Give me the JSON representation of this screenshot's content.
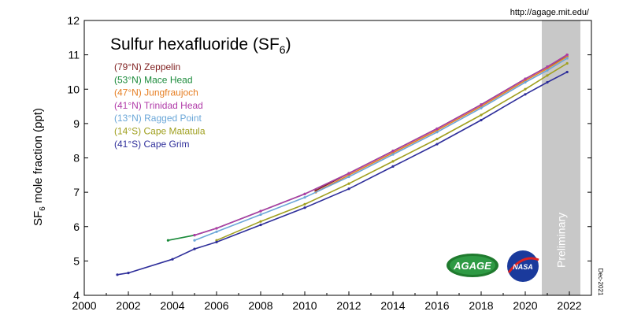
{
  "source_url": "http://agage.mit.edu/",
  "date_stamp": "Dec-2021",
  "preliminary_label": "Preliminary",
  "logos": {
    "agage": "AGAGE",
    "nasa": "NASA"
  },
  "chart_data": {
    "type": "line",
    "title_main": "Sulfur hexafluoride (SF",
    "title_sub": "6",
    "title_end": ")",
    "ylabel_main": "SF",
    "ylabel_sub": "6",
    "ylabel_end": " mole fraction (ppt)",
    "xlabel": "",
    "xlim": [
      2000,
      2023
    ],
    "ylim": [
      4,
      12
    ],
    "xticks": [
      2000,
      2002,
      2004,
      2006,
      2008,
      2010,
      2012,
      2014,
      2016,
      2018,
      2020,
      2022
    ],
    "yticks": [
      4,
      5,
      6,
      7,
      8,
      9,
      10,
      11,
      12
    ],
    "preliminary_range": [
      2020.75,
      2022.5
    ],
    "grid": false,
    "legend_position": "top-left",
    "series": [
      {
        "label": "(79°N)",
        "name": "Zeppelin",
        "color": "#7f1f1f",
        "x": [
          2010.5,
          2012,
          2014,
          2016,
          2018,
          2020,
          2021,
          2021.9
        ],
        "y": [
          7.05,
          7.55,
          8.2,
          8.85,
          9.55,
          10.3,
          10.65,
          11.0
        ]
      },
      {
        "label": "(53°N)",
        "name": "Mace Head",
        "color": "#1a8a3a",
        "x": [
          2003.8,
          2005,
          2006,
          2008,
          2010,
          2012,
          2014,
          2016,
          2018,
          2020,
          2021,
          2021.9
        ],
        "y": [
          5.6,
          5.75,
          5.95,
          6.45,
          6.95,
          7.55,
          8.2,
          8.85,
          9.55,
          10.3,
          10.65,
          10.95
        ]
      },
      {
        "label": "(47°N)",
        "name": "Jungfraujoch",
        "color": "#e67e22",
        "x": [
          2010.5,
          2012,
          2014,
          2016,
          2018,
          2020,
          2021,
          2021.9
        ],
        "y": [
          7.0,
          7.5,
          8.15,
          8.8,
          9.5,
          10.25,
          10.6,
          10.95
        ]
      },
      {
        "label": "(41°N)",
        "name": "Trinidad Head",
        "color": "#b03aa8",
        "x": [
          2005,
          2006,
          2008,
          2010,
          2012,
          2014,
          2016,
          2018,
          2020,
          2021,
          2021.9
        ],
        "y": [
          5.75,
          5.95,
          6.45,
          6.95,
          7.55,
          8.2,
          8.85,
          9.55,
          10.3,
          10.65,
          11.0
        ]
      },
      {
        "label": "(13°N)",
        "name": "Ragged Point",
        "color": "#6ba7d8",
        "x": [
          2005,
          2006,
          2008,
          2010,
          2012,
          2014,
          2016,
          2018,
          2020,
          2021,
          2021.9
        ],
        "y": [
          5.6,
          5.85,
          6.35,
          6.85,
          7.45,
          8.1,
          8.75,
          9.45,
          10.2,
          10.55,
          10.9
        ]
      },
      {
        "label": "(14°S)",
        "name": "Cape Matatula",
        "color": "#a0a020",
        "x": [
          2006,
          2008,
          2010,
          2012,
          2014,
          2016,
          2018,
          2020,
          2021,
          2021.9
        ],
        "y": [
          5.6,
          6.15,
          6.65,
          7.25,
          7.9,
          8.55,
          9.25,
          10.0,
          10.4,
          10.75
        ]
      },
      {
        "label": "(41°S)",
        "name": "Cape Grim",
        "color": "#2e2e9a",
        "x": [
          2001.5,
          2002,
          2004,
          2005,
          2006,
          2008,
          2010,
          2012,
          2014,
          2016,
          2018,
          2020,
          2021,
          2021.9
        ],
        "y": [
          4.6,
          4.65,
          5.05,
          5.35,
          5.55,
          6.05,
          6.55,
          7.1,
          7.75,
          8.4,
          9.1,
          9.85,
          10.2,
          10.5
        ]
      }
    ]
  }
}
